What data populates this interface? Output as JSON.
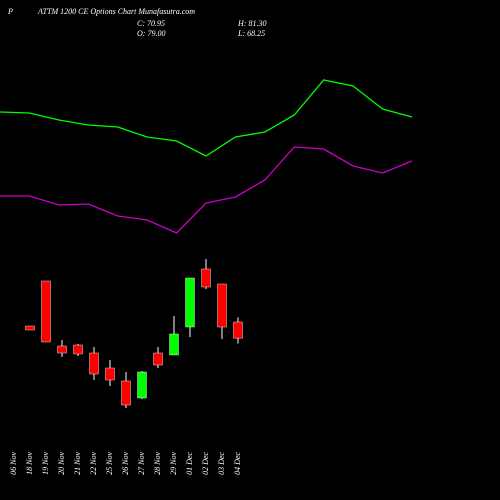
{
  "chart_data": {
    "type": "candlestick",
    "symbol": "P",
    "title": "ATTM 1200  CE Options  Chart Munafasutra.com",
    "ohlc_labels": {
      "close": "C: 70.95",
      "high": "H: 81.30",
      "open": "O: 79.00",
      "low": "L: 68.25"
    },
    "categories": [
      "06 Nov",
      "18 Nov",
      "19 Nov",
      "20 Nov",
      "21 Nov",
      "22 Nov",
      "25 Nov",
      "26 Nov",
      "27 Nov",
      "28 Nov",
      "29 Nov",
      "01 Dec",
      "02 Dec",
      "03 Dec",
      "04 Dec"
    ],
    "open": [
      null,
      77,
      99.5,
      67,
      67.5,
      63.5,
      56,
      49.5,
      41,
      63.5,
      62.5,
      76.5,
      105.5,
      98,
      79.0
    ],
    "high": [
      null,
      77,
      99.5,
      70,
      68,
      66.5,
      60,
      54,
      54.5,
      66.5,
      82,
      101,
      110.5,
      98,
      81.3
    ],
    "low": [
      null,
      75,
      69,
      61.5,
      62,
      50,
      47,
      36,
      40.5,
      56,
      62.5,
      71.5,
      95.5,
      70.5,
      68.25
    ],
    "close": [
      null,
      75,
      69,
      63.5,
      63,
      53,
      50,
      37.5,
      54,
      57.5,
      73,
      101,
      96.5,
      76.5,
      70.95
    ],
    "up_color": "#00ff00",
    "down_color": "#ff0000",
    "ylim": [
      -10,
      240
    ],
    "lines": [
      {
        "color": "#00ff00",
        "values": [
          184,
          183.5,
          180,
          177.5,
          176.5,
          171.5,
          169.5,
          162,
          171.5,
          174,
          182.5,
          200,
          197,
          185.5,
          181.5
        ]
      },
      {
        "color": "#cc00cc",
        "values": [
          142,
          142,
          137.5,
          138,
          132,
          130,
          123.5,
          138.5,
          141.5,
          150,
          166.5,
          165.5,
          157,
          153.5,
          159.5
        ]
      }
    ]
  }
}
